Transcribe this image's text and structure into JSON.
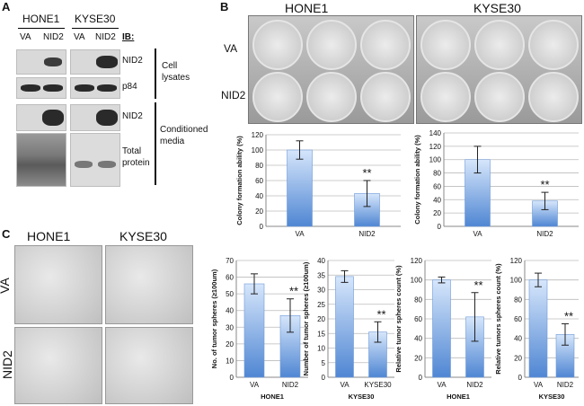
{
  "panel_a": {
    "letter": "A",
    "lines": [
      "HONE1",
      "KYSE30"
    ],
    "lanes": [
      "VA",
      "NID2",
      "VA",
      "NID2"
    ],
    "ib_label": "IB:",
    "targets": [
      "NID2",
      "p84",
      "NID2",
      "Total protein"
    ],
    "groups": [
      "Cell lysates",
      "Conditioned media"
    ]
  },
  "panel_b": {
    "letter": "B",
    "lines": [
      "HONE1",
      "KYSE30"
    ],
    "rows": [
      "VA",
      "NID2"
    ]
  },
  "panel_c": {
    "letter": "C",
    "lines": [
      "HONE1",
      "KYSE30"
    ],
    "rows": [
      "VA",
      "NID2"
    ]
  },
  "chart_data": [
    {
      "type": "bar",
      "id": "b-hone1",
      "categories": [
        "VA",
        "NID2"
      ],
      "values": [
        100,
        43
      ],
      "errors": [
        12,
        17
      ],
      "ylim": [
        0,
        120
      ],
      "yticks": [
        0,
        20,
        40,
        60,
        80,
        100,
        120
      ],
      "ylabel": "Colony formation ability (%)",
      "xlabel": "",
      "significance": "**",
      "sig_index": 1
    },
    {
      "type": "bar",
      "id": "b-kyse30",
      "categories": [
        "VA",
        "NID2"
      ],
      "values": [
        100,
        38
      ],
      "errors": [
        20,
        13
      ],
      "ylim": [
        0,
        140
      ],
      "yticks": [
        0,
        20,
        40,
        60,
        80,
        100,
        120,
        140
      ],
      "ylabel": "Colony formation ability (%)",
      "xlabel": "",
      "significance": "**",
      "sig_index": 1
    },
    {
      "type": "bar",
      "id": "c1",
      "categories": [
        "VA",
        "NID2"
      ],
      "values": [
        56,
        37
      ],
      "errors": [
        6,
        10
      ],
      "ylim": [
        0,
        70
      ],
      "yticks": [
        0,
        10,
        20,
        30,
        40,
        50,
        60,
        70
      ],
      "ylabel": "No. of tumor spheres (≥100um)",
      "xlabel": "HONE1",
      "significance": "**",
      "sig_index": 1
    },
    {
      "type": "bar",
      "id": "c2",
      "categories": [
        "VA",
        "KYSE30"
      ],
      "values": [
        34.5,
        15.5
      ],
      "errors": [
        2,
        3.5
      ],
      "ylim": [
        0,
        40
      ],
      "yticks": [
        0,
        5,
        10,
        15,
        20,
        25,
        30,
        35,
        40
      ],
      "ylabel": "Number of tumor spheres (≥100um)",
      "xlabel": "KYSE30",
      "significance": "**",
      "sig_index": 1
    },
    {
      "type": "bar",
      "id": "c3",
      "categories": [
        "VA",
        "NID2"
      ],
      "values": [
        100,
        62
      ],
      "errors": [
        3,
        25
      ],
      "ylim": [
        0,
        120
      ],
      "yticks": [
        0,
        20,
        40,
        60,
        80,
        100,
        120
      ],
      "ylabel": "Relative tumor spheres count (%)",
      "xlabel": "HONE1",
      "significance": "**",
      "sig_index": 1
    },
    {
      "type": "bar",
      "id": "c4",
      "categories": [
        "VA",
        "NID2"
      ],
      "values": [
        100,
        44
      ],
      "errors": [
        7,
        11
      ],
      "ylim": [
        0,
        120
      ],
      "yticks": [
        0,
        20,
        40,
        60,
        80,
        100,
        120
      ],
      "ylabel": "Relative tumors spheres count (%)",
      "xlabel": "KYSE30",
      "significance": "**",
      "sig_index": 1
    }
  ]
}
